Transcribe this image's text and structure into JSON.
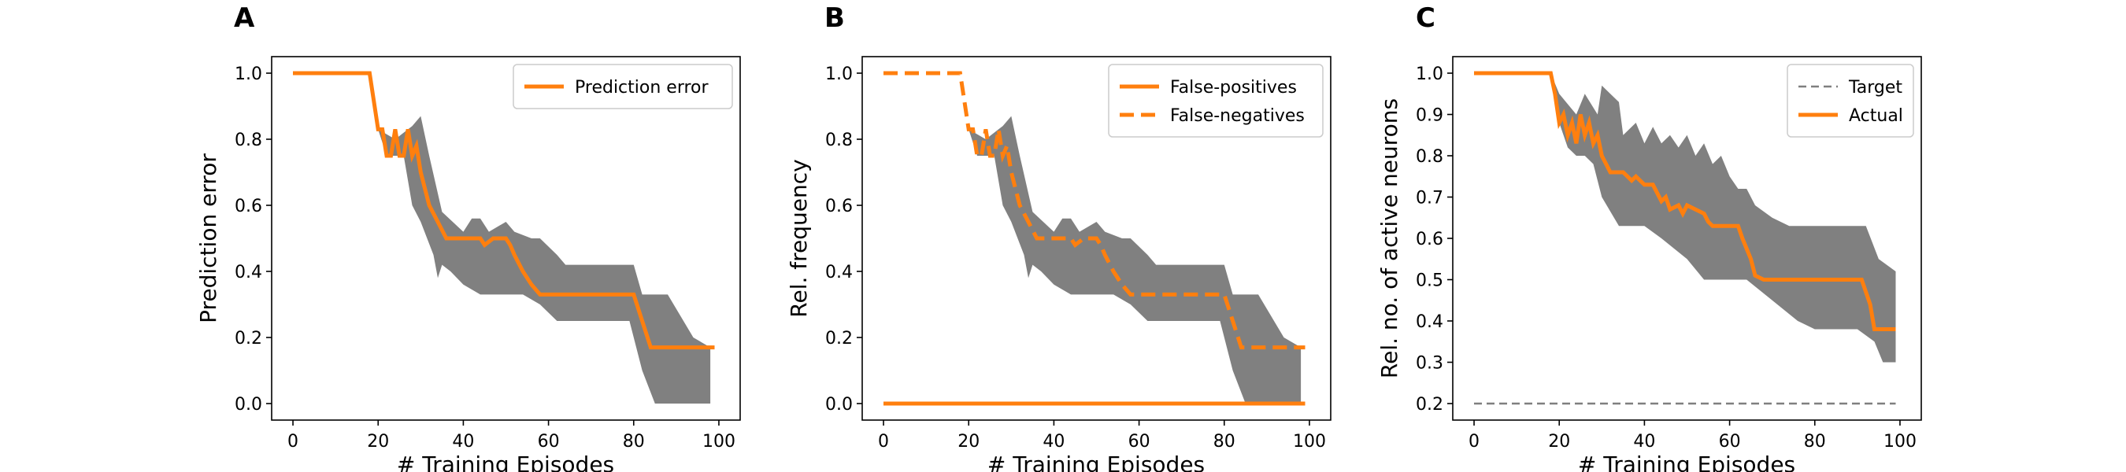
{
  "colors": {
    "series": "#ff7f0e",
    "band": "#808080",
    "target": "#7f7f7f",
    "axes": "#000000"
  },
  "chart_data": [
    {
      "panel_letter": "A",
      "type": "line",
      "xlabel": "# Training Episodes",
      "ylabel": "Prediction error",
      "xlim": [
        -5,
        105
      ],
      "ylim": [
        -0.05,
        1.05
      ],
      "xticks": [
        0,
        20,
        40,
        60,
        80,
        100
      ],
      "yticks": [
        0.0,
        0.2,
        0.4,
        0.6,
        0.8,
        1.0
      ],
      "ytick_labels": [
        "0.0",
        "0.2",
        "0.4",
        "0.6",
        "0.8",
        "1.0"
      ],
      "grid": false,
      "legend_position": "top-right",
      "band": {
        "upper": [
          [
            18,
            1.0
          ],
          [
            20,
            0.83
          ],
          [
            24,
            0.8
          ],
          [
            28,
            0.84
          ],
          [
            30,
            0.87
          ],
          [
            32,
            0.75
          ],
          [
            35,
            0.58
          ],
          [
            40,
            0.52
          ],
          [
            42,
            0.56
          ],
          [
            44,
            0.56
          ],
          [
            46,
            0.52
          ],
          [
            50,
            0.55
          ],
          [
            52,
            0.52
          ],
          [
            56,
            0.5
          ],
          [
            58,
            0.5
          ],
          [
            62,
            0.45
          ],
          [
            64,
            0.42
          ],
          [
            80,
            0.42
          ],
          [
            82,
            0.33
          ],
          [
            88,
            0.33
          ],
          [
            94,
            0.2
          ],
          [
            98,
            0.17
          ]
        ],
        "lower": [
          [
            98,
            0.0
          ],
          [
            85,
            0.0
          ],
          [
            82,
            0.1
          ],
          [
            79,
            0.25
          ],
          [
            70,
            0.25
          ],
          [
            66,
            0.25
          ],
          [
            62,
            0.25
          ],
          [
            58,
            0.3
          ],
          [
            54,
            0.33
          ],
          [
            50,
            0.33
          ],
          [
            44,
            0.33
          ],
          [
            40,
            0.36
          ],
          [
            37,
            0.4
          ],
          [
            35,
            0.42
          ],
          [
            34,
            0.38
          ],
          [
            33,
            0.45
          ],
          [
            30,
            0.55
          ],
          [
            28,
            0.6
          ],
          [
            26,
            0.75
          ],
          [
            22,
            0.75
          ],
          [
            20,
            0.83
          ],
          [
            18,
            1.0
          ]
        ]
      },
      "series": [
        {
          "name": "Prediction error",
          "style": "solid",
          "points": [
            [
              0,
              1.0
            ],
            [
              18,
              1.0
            ],
            [
              20,
              0.83
            ],
            [
              21,
              0.83
            ],
            [
              22,
              0.75
            ],
            [
              23,
              0.75
            ],
            [
              24,
              0.83
            ],
            [
              25,
              0.75
            ],
            [
              26,
              0.75
            ],
            [
              27,
              0.83
            ],
            [
              28,
              0.75
            ],
            [
              29,
              0.78
            ],
            [
              30,
              0.7
            ],
            [
              31,
              0.65
            ],
            [
              32,
              0.6
            ],
            [
              34,
              0.55
            ],
            [
              36,
              0.5
            ],
            [
              38,
              0.5
            ],
            [
              44,
              0.5
            ],
            [
              45,
              0.48
            ],
            [
              47,
              0.5
            ],
            [
              50,
              0.5
            ],
            [
              51,
              0.48
            ],
            [
              52,
              0.45
            ],
            [
              54,
              0.4
            ],
            [
              56,
              0.36
            ],
            [
              58,
              0.33
            ],
            [
              80,
              0.33
            ],
            [
              82,
              0.25
            ],
            [
              84,
              0.17
            ],
            [
              99,
              0.17
            ]
          ]
        }
      ]
    },
    {
      "panel_letter": "B",
      "type": "line",
      "xlabel": "# Training Episodes",
      "ylabel": "Rel. frequency",
      "xlim": [
        -5,
        105
      ],
      "ylim": [
        -0.05,
        1.05
      ],
      "xticks": [
        0,
        20,
        40,
        60,
        80,
        100
      ],
      "yticks": [
        0.0,
        0.2,
        0.4,
        0.6,
        0.8,
        1.0
      ],
      "ytick_labels": [
        "0.0",
        "0.2",
        "0.4",
        "0.6",
        "0.8",
        "1.0"
      ],
      "grid": false,
      "legend_position": "top-right",
      "band": {
        "upper": [
          [
            18,
            1.0
          ],
          [
            20,
            0.83
          ],
          [
            24,
            0.8
          ],
          [
            28,
            0.84
          ],
          [
            30,
            0.87
          ],
          [
            32,
            0.75
          ],
          [
            35,
            0.58
          ],
          [
            40,
            0.52
          ],
          [
            42,
            0.56
          ],
          [
            44,
            0.56
          ],
          [
            46,
            0.52
          ],
          [
            50,
            0.55
          ],
          [
            52,
            0.52
          ],
          [
            56,
            0.5
          ],
          [
            58,
            0.5
          ],
          [
            62,
            0.45
          ],
          [
            64,
            0.42
          ],
          [
            80,
            0.42
          ],
          [
            82,
            0.33
          ],
          [
            88,
            0.33
          ],
          [
            94,
            0.2
          ],
          [
            98,
            0.17
          ]
        ],
        "lower": [
          [
            98,
            0.0
          ],
          [
            85,
            0.0
          ],
          [
            82,
            0.1
          ],
          [
            79,
            0.25
          ],
          [
            70,
            0.25
          ],
          [
            66,
            0.25
          ],
          [
            62,
            0.25
          ],
          [
            58,
            0.3
          ],
          [
            54,
            0.33
          ],
          [
            50,
            0.33
          ],
          [
            44,
            0.33
          ],
          [
            40,
            0.36
          ],
          [
            37,
            0.4
          ],
          [
            35,
            0.42
          ],
          [
            34,
            0.38
          ],
          [
            33,
            0.45
          ],
          [
            30,
            0.55
          ],
          [
            28,
            0.6
          ],
          [
            26,
            0.75
          ],
          [
            22,
            0.75
          ],
          [
            20,
            0.83
          ],
          [
            18,
            1.0
          ]
        ]
      },
      "series": [
        {
          "name": "False-positives",
          "style": "solid",
          "points": [
            [
              0,
              0.0
            ],
            [
              99,
              0.0
            ]
          ]
        },
        {
          "name": "False-negatives",
          "style": "dashed",
          "points": [
            [
              0,
              1.0
            ],
            [
              18,
              1.0
            ],
            [
              20,
              0.83
            ],
            [
              21,
              0.83
            ],
            [
              22,
              0.75
            ],
            [
              23,
              0.75
            ],
            [
              24,
              0.83
            ],
            [
              25,
              0.75
            ],
            [
              26,
              0.75
            ],
            [
              27,
              0.83
            ],
            [
              28,
              0.75
            ],
            [
              29,
              0.78
            ],
            [
              30,
              0.7
            ],
            [
              31,
              0.65
            ],
            [
              32,
              0.6
            ],
            [
              34,
              0.55
            ],
            [
              36,
              0.5
            ],
            [
              38,
              0.5
            ],
            [
              44,
              0.5
            ],
            [
              45,
              0.48
            ],
            [
              47,
              0.5
            ],
            [
              50,
              0.5
            ],
            [
              51,
              0.48
            ],
            [
              52,
              0.45
            ],
            [
              54,
              0.4
            ],
            [
              56,
              0.36
            ],
            [
              58,
              0.33
            ],
            [
              80,
              0.33
            ],
            [
              82,
              0.25
            ],
            [
              84,
              0.17
            ],
            [
              99,
              0.17
            ]
          ]
        }
      ]
    },
    {
      "panel_letter": "C",
      "type": "line",
      "xlabel": "# Training Episodes",
      "ylabel": "Rel. no. of active neurons",
      "xlim": [
        -5,
        105
      ],
      "ylim": [
        0.16,
        1.04
      ],
      "xticks": [
        0,
        20,
        40,
        60,
        80,
        100
      ],
      "yticks": [
        0.2,
        0.3,
        0.4,
        0.5,
        0.6,
        0.7,
        0.8,
        0.9,
        1.0
      ],
      "ytick_labels": [
        "0.2",
        "0.3",
        "0.4",
        "0.5",
        "0.6",
        "0.7",
        "0.8",
        "0.9",
        "1.0"
      ],
      "grid": false,
      "legend_position": "top-right",
      "band": {
        "upper": [
          [
            18,
            1.0
          ],
          [
            20,
            0.95
          ],
          [
            24,
            0.9
          ],
          [
            26,
            0.95
          ],
          [
            29,
            0.9
          ],
          [
            30,
            0.97
          ],
          [
            32,
            0.95
          ],
          [
            34,
            0.93
          ],
          [
            35,
            0.85
          ],
          [
            38,
            0.88
          ],
          [
            40,
            0.83
          ],
          [
            42,
            0.87
          ],
          [
            44,
            0.83
          ],
          [
            46,
            0.85
          ],
          [
            48,
            0.82
          ],
          [
            50,
            0.85
          ],
          [
            52,
            0.8
          ],
          [
            54,
            0.83
          ],
          [
            56,
            0.78
          ],
          [
            58,
            0.8
          ],
          [
            60,
            0.75
          ],
          [
            62,
            0.72
          ],
          [
            64,
            0.72
          ],
          [
            66,
            0.68
          ],
          [
            70,
            0.65
          ],
          [
            74,
            0.63
          ],
          [
            92,
            0.63
          ],
          [
            95,
            0.55
          ],
          [
            99,
            0.52
          ]
        ],
        "lower": [
          [
            99,
            0.3
          ],
          [
            96,
            0.3
          ],
          [
            94,
            0.35
          ],
          [
            90,
            0.38
          ],
          [
            80,
            0.38
          ],
          [
            76,
            0.4
          ],
          [
            70,
            0.45
          ],
          [
            64,
            0.5
          ],
          [
            54,
            0.5
          ],
          [
            50,
            0.55
          ],
          [
            44,
            0.6
          ],
          [
            40,
            0.63
          ],
          [
            34,
            0.63
          ],
          [
            30,
            0.7
          ],
          [
            28,
            0.78
          ],
          [
            26,
            0.8
          ],
          [
            24,
            0.8
          ],
          [
            22,
            0.82
          ],
          [
            20,
            0.88
          ],
          [
            18,
            1.0
          ]
        ]
      },
      "series": [
        {
          "name": "Target",
          "style": "dashed",
          "points": [
            [
              0,
              0.2
            ],
            [
              99,
              0.2
            ]
          ]
        },
        {
          "name": "Actual",
          "style": "solid",
          "points": [
            [
              0,
              1.0
            ],
            [
              18,
              1.0
            ],
            [
              19,
              0.95
            ],
            [
              20,
              0.88
            ],
            [
              21,
              0.9
            ],
            [
              22,
              0.85
            ],
            [
              23,
              0.88
            ],
            [
              24,
              0.83
            ],
            [
              25,
              0.9
            ],
            [
              26,
              0.85
            ],
            [
              27,
              0.88
            ],
            [
              28,
              0.83
            ],
            [
              29,
              0.85
            ],
            [
              30,
              0.8
            ],
            [
              31,
              0.78
            ],
            [
              32,
              0.76
            ],
            [
              35,
              0.76
            ],
            [
              37,
              0.74
            ],
            [
              38,
              0.75
            ],
            [
              40,
              0.73
            ],
            [
              42,
              0.73
            ],
            [
              44,
              0.69
            ],
            [
              45,
              0.7
            ],
            [
              46,
              0.67
            ],
            [
              48,
              0.68
            ],
            [
              49,
              0.66
            ],
            [
              50,
              0.68
            ],
            [
              52,
              0.67
            ],
            [
              54,
              0.66
            ],
            [
              55,
              0.64
            ],
            [
              56,
              0.63
            ],
            [
              62,
              0.63
            ],
            [
              63,
              0.6
            ],
            [
              65,
              0.55
            ],
            [
              66,
              0.51
            ],
            [
              68,
              0.5
            ],
            [
              91,
              0.5
            ],
            [
              93,
              0.44
            ],
            [
              94,
              0.38
            ],
            [
              99,
              0.38
            ]
          ]
        }
      ]
    }
  ]
}
